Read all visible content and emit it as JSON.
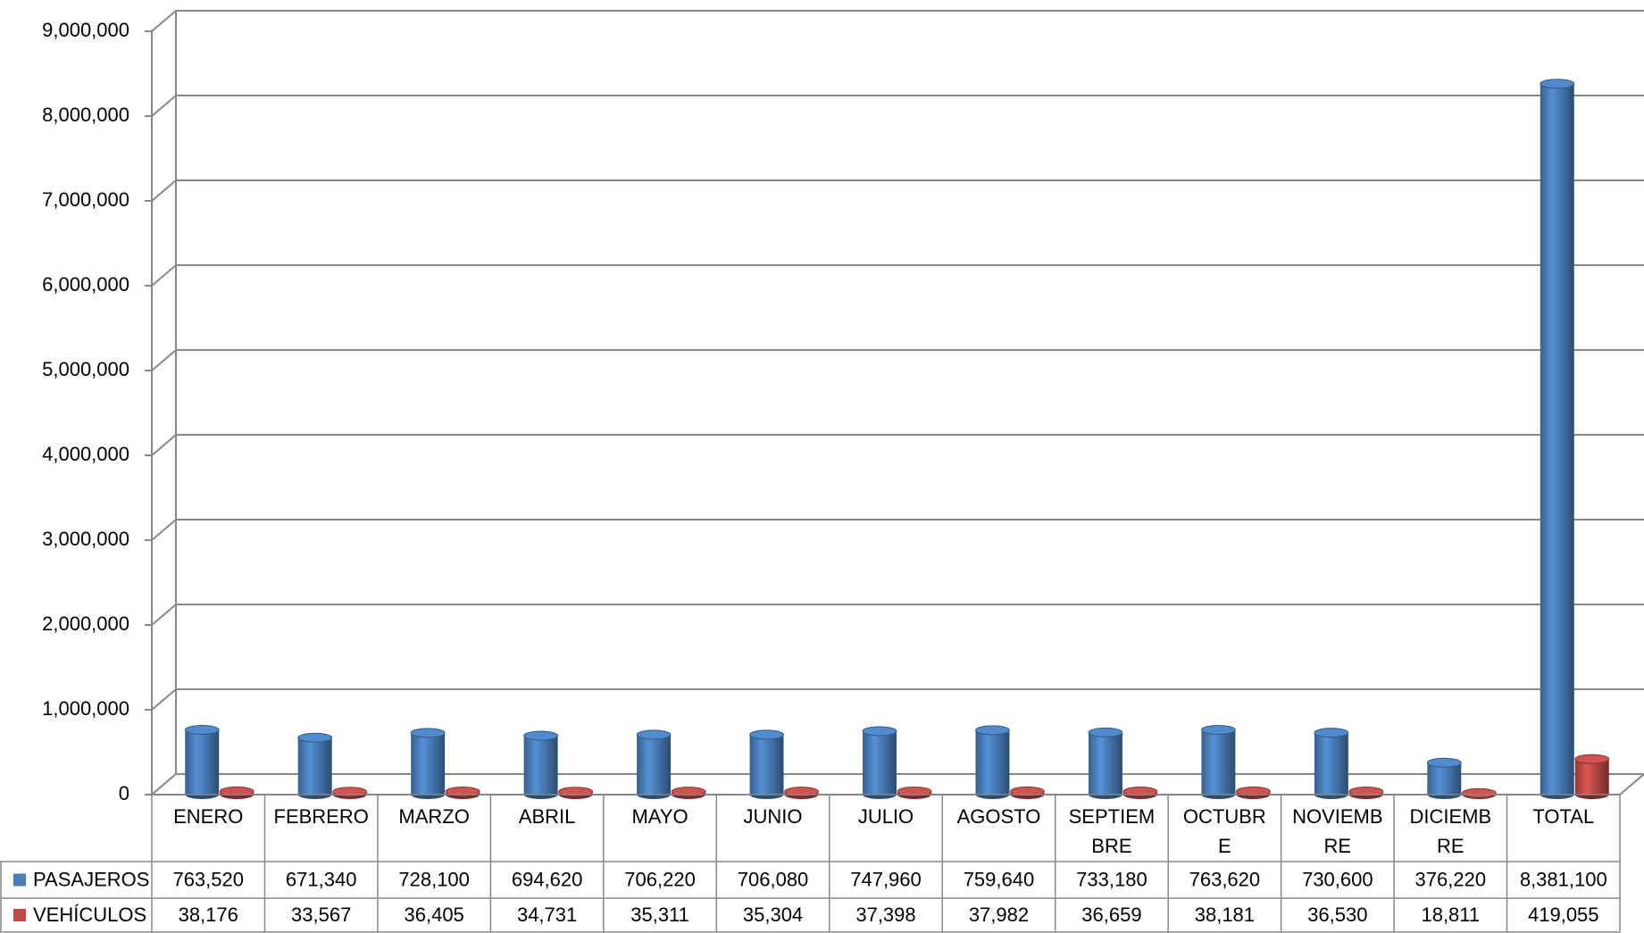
{
  "chart_data": {
    "type": "bar",
    "categories": [
      "ENERO",
      "FEBRERO",
      "MARZO",
      "ABRIL",
      "MAYO",
      "JUNIO",
      "JULIO",
      "AGOSTO",
      "SEPTIEMBRE",
      "OCTUBRE",
      "NOVIEMBRE",
      "DICIEMBRE",
      "TOTAL"
    ],
    "series": [
      {
        "name": "PASAJEROS",
        "color": "#4a7ebb",
        "values": [
          763520,
          671340,
          728100,
          694620,
          706220,
          706080,
          747960,
          759640,
          733180,
          763620,
          730600,
          376220,
          8381100
        ],
        "value_labels": [
          "763,520",
          "671,340",
          "728,100",
          "694,620",
          "706,220",
          "706,080",
          "747,960",
          "759,640",
          "733,180",
          "763,620",
          "730,600",
          "376,220",
          "8,381,100"
        ]
      },
      {
        "name": "VEHÍCULOS",
        "color": "#be4b48",
        "values": [
          38176,
          33567,
          36405,
          34731,
          35311,
          35304,
          37398,
          37982,
          36659,
          38181,
          36530,
          18811,
          419055
        ],
        "value_labels": [
          "38,176",
          "33,567",
          "36,405",
          "34,731",
          "35,311",
          "35,304",
          "37,398",
          "37,982",
          "36,659",
          "38,181",
          "36,530",
          "18,811",
          "419,055"
        ]
      }
    ],
    "ylim": [
      0,
      9000000
    ],
    "yticks": [
      0,
      {
        "value": 1000000,
        "label": "1,000,000"
      },
      {
        "value": 2000000,
        "label": "2,000,000"
      },
      {
        "value": 3000000,
        "label": "3,000,000"
      },
      {
        "value": 4000000,
        "label": "4,000,000"
      },
      {
        "value": 5000000,
        "label": "5,000,000"
      },
      {
        "value": 6000000,
        "label": "6,000,000"
      },
      {
        "value": 7000000,
        "label": "7,000,000"
      },
      {
        "value": 8000000,
        "label": "8,000,000"
      },
      {
        "value": 9000000,
        "label": "9,000,000"
      }
    ],
    "grid": true
  }
}
